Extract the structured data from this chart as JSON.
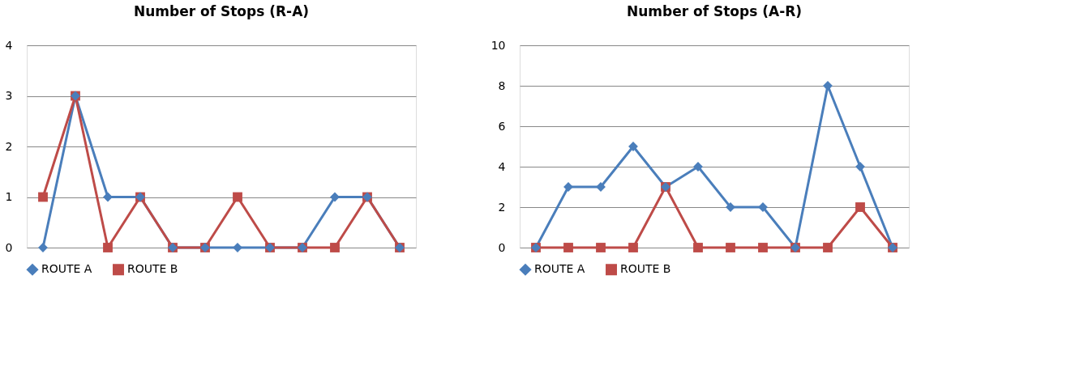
{
  "chart_data": [
    {
      "type": "line",
      "title": "Number of Stops (R-A)",
      "categories": [
        null,
        null,
        null,
        null,
        null,
        null,
        null,
        null,
        null,
        null,
        null,
        null
      ],
      "ylim": [
        0,
        4
      ],
      "yticks": [
        0,
        1,
        2,
        3,
        4
      ],
      "grid": "y",
      "legend": "bottom",
      "tick_labels": "y",
      "series": [
        {
          "name": "ROUTE A",
          "color": "#4a7ebb",
          "marker": "diamond",
          "values": [
            0,
            3,
            1,
            1,
            0,
            0,
            0,
            0,
            0,
            1,
            1,
            0
          ]
        },
        {
          "name": "ROUTE B",
          "color": "#be4b48",
          "marker": "square",
          "values": [
            1,
            3,
            0,
            1,
            0,
            0,
            1,
            0,
            0,
            0,
            1,
            0
          ]
        }
      ]
    },
    {
      "type": "line",
      "title": "Number of Stops (A-R)",
      "categories": [
        null,
        null,
        null,
        null,
        null,
        null,
        null,
        null,
        null,
        null,
        null,
        null
      ],
      "ylim": [
        0,
        10
      ],
      "yticks": [
        0,
        2,
        4,
        6,
        8,
        10
      ],
      "grid": "y",
      "legend": "bottom",
      "tick_labels": "y",
      "series": [
        {
          "name": "ROUTE A",
          "color": "#4a7ebb",
          "marker": "diamond",
          "values": [
            0,
            3,
            3,
            5,
            3,
            4,
            2,
            2,
            0,
            8,
            4,
            0
          ]
        },
        {
          "name": "ROUTE B",
          "color": "#be4b48",
          "marker": "square",
          "values": [
            0,
            0,
            0,
            0,
            3,
            0,
            0,
            0,
            0,
            0,
            2,
            0
          ]
        }
      ]
    }
  ]
}
